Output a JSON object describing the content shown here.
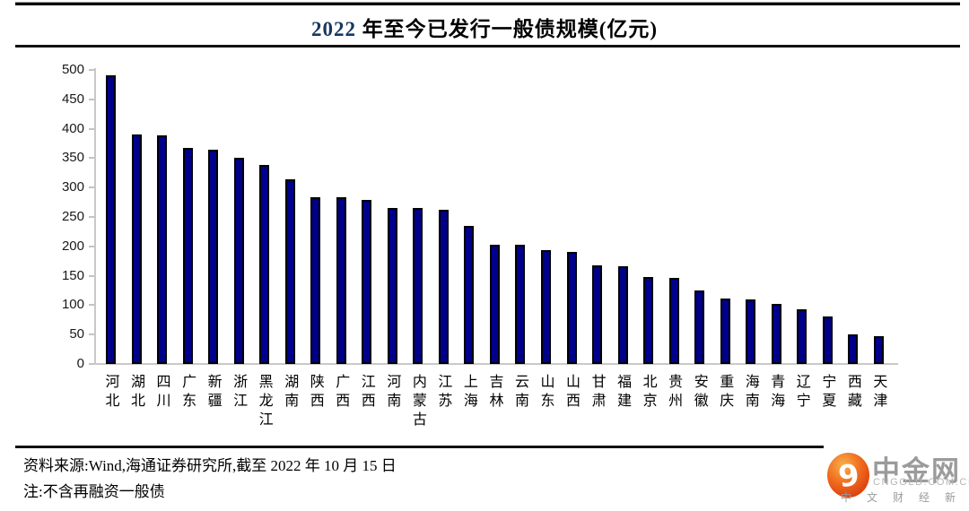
{
  "title": {
    "year": "2022",
    "rest": " 年至今已发行一般债规模(亿元)"
  },
  "chart_data": {
    "type": "bar",
    "title": "2022 年至今已发行一般债规模(亿元)",
    "categories": [
      "河北",
      "湖北",
      "四川",
      "广东",
      "新疆",
      "浙江",
      "黑龙江",
      "湖南",
      "陕西",
      "广西",
      "江西",
      "河南",
      "内蒙古",
      "江苏",
      "上海",
      "吉林",
      "云南",
      "山东",
      "山西",
      "甘肃",
      "福建",
      "北京",
      "贵州",
      "安徽",
      "重庆",
      "海南",
      "青海",
      "辽宁",
      "宁夏",
      "西藏",
      "天津"
    ],
    "values": [
      491,
      391,
      388,
      367,
      364,
      351,
      339,
      314,
      284,
      283,
      279,
      266,
      265,
      262,
      234,
      203,
      202,
      193,
      191,
      167,
      166,
      148,
      146,
      125,
      112,
      110,
      102,
      93,
      81,
      51,
      48
    ],
    "xlabel": "",
    "ylabel": "",
    "ylim": [
      0,
      500
    ],
    "yticks": [
      0,
      50,
      100,
      150,
      200,
      250,
      300,
      350,
      400,
      450,
      500
    ],
    "grid": false,
    "legend": null,
    "bar_color": "#00008b",
    "bar_border_color": "#000000",
    "axis_color": "#c9c9c9"
  },
  "footer": {
    "source_line": "资料来源:Wind,海通证券研究所,截至 2022 年 10 月 15 日",
    "note_line": "注:不含再融资一般债"
  },
  "logo": {
    "glyph": "9",
    "name": "中金网",
    "domain": "CNGOLD.COM.CN",
    "tagline": "中 文 财 经 新 媒 体",
    "mark_outer_color": "#d93a0c",
    "mark_inner_color": "#f9b04a",
    "text_color": "#9b9b9b"
  }
}
